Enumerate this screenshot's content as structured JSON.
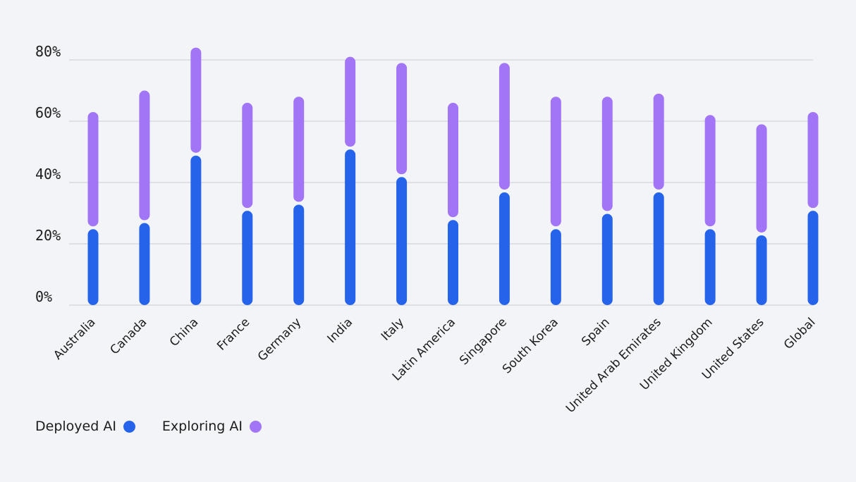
{
  "chart_data": {
    "type": "bar",
    "stacked": true,
    "title": "",
    "xlabel": "",
    "ylabel": "",
    "ylim": [
      0,
      80
    ],
    "yticks": [
      "0%",
      "20%",
      "40%",
      "60%",
      "80%"
    ],
    "categories": [
      "Australia",
      "Canada",
      "China",
      "France",
      "Germany",
      "India",
      "Italy",
      "Latin America",
      "Singapore",
      "South Korea",
      "Spain",
      "United Arab Emirates",
      "United Kingdom",
      "United States",
      "Global"
    ],
    "series": [
      {
        "name": "Deployed AI",
        "color": "#2563eb",
        "values": [
          25,
          27,
          49,
          31,
          33,
          51,
          42,
          28,
          37,
          25,
          30,
          37,
          25,
          23,
          31
        ]
      },
      {
        "name": "Exploring AI",
        "color": "#a275f7",
        "values": [
          38,
          43,
          35,
          35,
          35,
          30,
          37,
          38,
          42,
          43,
          38,
          32,
          37,
          36,
          32
        ]
      }
    ],
    "legend_position": "bottom-left",
    "grid": true
  },
  "legend": {
    "deployed_label": "Deployed AI",
    "exploring_label": "Exploring AI"
  }
}
